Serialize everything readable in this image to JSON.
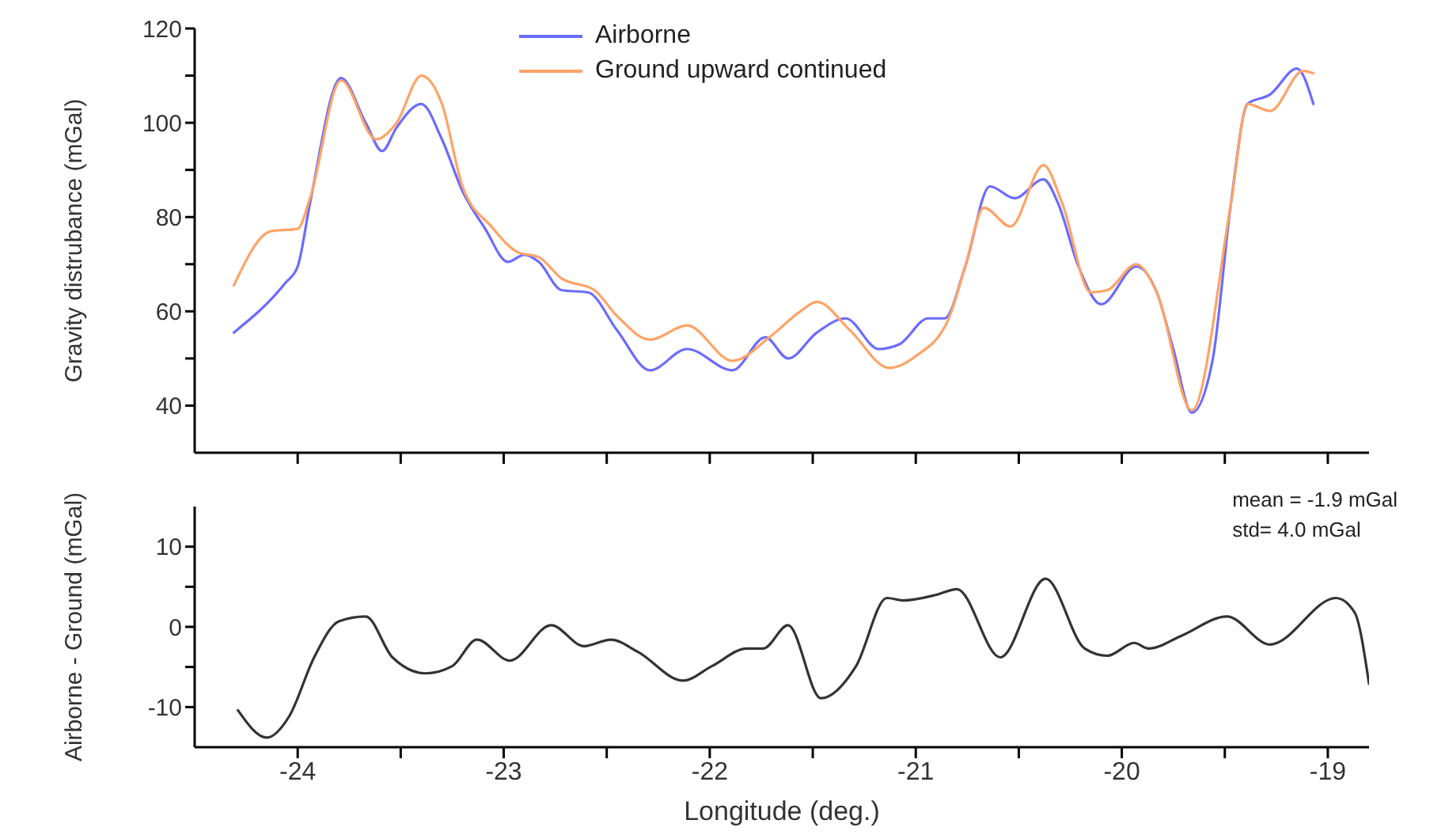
{
  "chart_data": [
    {
      "type": "line",
      "ylabel": "Gravity distrubance (mGal)",
      "xlim": [
        -24.5,
        -18.8
      ],
      "xticks": [
        {
          "value": -24,
          "label": null
        },
        {
          "value": -23.5,
          "label": null
        },
        {
          "value": -23,
          "label": null
        },
        {
          "value": -22.5,
          "label": null
        },
        {
          "value": -22,
          "label": null
        },
        {
          "value": -21.5,
          "label": null
        },
        {
          "value": -21,
          "label": null
        },
        {
          "value": -20.5,
          "label": null
        },
        {
          "value": -20,
          "label": null
        },
        {
          "value": -19.5,
          "label": null
        },
        {
          "value": -19,
          "label": null
        }
      ],
      "ylim": [
        30,
        120
      ],
      "yticks": [
        40,
        {
          "value": 50,
          "label": null
        },
        60,
        {
          "value": 70,
          "label": null
        },
        80,
        {
          "value": 90,
          "label": null
        },
        100,
        {
          "value": 110,
          "label": null
        },
        120
      ],
      "tick_labels": "y",
      "legend": "top",
      "grid": false,
      "marker": "none",
      "line_style": "solid",
      "series": [
        {
          "name": "Airborne",
          "color": "#6b6bff",
          "x": [
            -24.31,
            -24.06,
            -24,
            -23.94,
            -23.79,
            -23.67,
            -23.59,
            -23.52,
            -23.4,
            -23.3,
            -23.2,
            -23.09,
            -22.98,
            -22.9,
            -22.83,
            -22.72,
            -22.59,
            -22.45,
            -22.29,
            -22.11,
            -21.89,
            -21.73,
            -21.62,
            -21.48,
            -21.34,
            -21.18,
            -21.08,
            -20.94,
            -20.86,
            -20.76,
            -20.64,
            -20.52,
            -20.38,
            -20.31,
            -20.21,
            -20.1,
            -19.93,
            -19.83,
            -19.75,
            -19.66,
            -19.56,
            -19.47,
            -19.39,
            -19.28,
            -19.15,
            -19.07
          ],
          "values": [
            55.5,
            66,
            69.5,
            83,
            109.5,
            100,
            94,
            99,
            104,
            96.5,
            85.5,
            77.5,
            70.5,
            72,
            70.5,
            64.5,
            64,
            56,
            47.5,
            52,
            47.5,
            54.5,
            50,
            55.5,
            58.5,
            52,
            53,
            58.5,
            58.5,
            69.5,
            86.5,
            84,
            88,
            83,
            69.5,
            61.5,
            69.5,
            64,
            52,
            38.5,
            49.5,
            83,
            104,
            106,
            111.5,
            104
          ]
        },
        {
          "name": "Ground upward continued",
          "color": "#ffa366",
          "x": [
            -24.31,
            -24.13,
            -24,
            -23.94,
            -23.79,
            -23.62,
            -23.52,
            -23.4,
            -23.3,
            -23.2,
            -23.06,
            -22.93,
            -22.83,
            -22.72,
            -22.56,
            -22.45,
            -22.29,
            -22.11,
            -21.89,
            -21.71,
            -21.56,
            -21.48,
            -21.32,
            -21.13,
            -21,
            -20.84,
            -20.76,
            -20.67,
            -20.54,
            -20.38,
            -20.29,
            -20.15,
            -20.07,
            -19.93,
            -19.83,
            -19.66,
            -19.47,
            -19.39,
            -19.28,
            -19.12,
            -19.07
          ],
          "values": [
            65.5,
            77,
            77.5,
            84,
            109,
            96.5,
            100,
            110,
            104,
            86.5,
            78,
            72.5,
            71.5,
            67,
            64.5,
            59,
            54,
            57,
            49.5,
            54.5,
            60,
            62,
            56,
            48,
            50.5,
            58.5,
            69.5,
            82,
            78,
            91,
            83,
            64,
            64.5,
            70,
            64,
            39,
            83,
            104,
            102.5,
            111,
            110.5
          ]
        }
      ]
    },
    {
      "type": "line",
      "xlabel": "Longitude (deg.)",
      "ylabel": "Airborne - Ground (mGal)",
      "xlim": [
        -24.5,
        -18.8
      ],
      "xticks": [
        -24,
        {
          "value": -23.5,
          "label": null
        },
        -23,
        {
          "value": -22.5,
          "label": null
        },
        -22,
        {
          "value": -21.5,
          "label": null
        },
        -21,
        {
          "value": -20.5,
          "label": null
        },
        -20,
        {
          "value": -19.5,
          "label": null
        },
        -19
      ],
      "ylim": [
        -15,
        15
      ],
      "yticks": [
        -10,
        {
          "value": -5,
          "label": null
        },
        0,
        {
          "value": 5,
          "label": null
        },
        10
      ],
      "grid": false,
      "marker": "none",
      "line_style": "solid",
      "annotations": [
        "mean = -1.9 mGal",
        "std= 4.0 mGal"
      ],
      "series": [
        {
          "color": "#333333",
          "x": [
            -24.29,
            -24.15,
            -24.04,
            -23.92,
            -23.8,
            -23.67,
            -23.54,
            -23.38,
            -23.25,
            -23.13,
            -22.97,
            -22.77,
            -22.61,
            -22.48,
            -22.35,
            -22.13,
            -21.99,
            -21.82,
            -21.74,
            -21.62,
            -21.46,
            -21.29,
            -21.14,
            -21.06,
            -20.9,
            -20.8,
            -20.59,
            -20.37,
            -20.18,
            -20.07,
            -19.94,
            -19.87,
            -19.71,
            -19.49,
            -19.28,
            -18.96,
            -18.87,
            -18.8
          ],
          "values": [
            -10.4,
            -13.8,
            -11.1,
            -3.8,
            0.7,
            1.3,
            -3.8,
            -5.8,
            -4.9,
            -1.6,
            -4.2,
            0.2,
            -2.4,
            -1.6,
            -3.1,
            -6.7,
            -4.9,
            -2.7,
            -2.7,
            0.2,
            -8.9,
            -4.9,
            3.6,
            3.3,
            4,
            4.7,
            -3.8,
            6,
            -2.7,
            -3.6,
            -2,
            -2.7,
            -1.1,
            1.3,
            -2.2,
            3.6,
            1.8,
            -7.1
          ]
        }
      ]
    }
  ]
}
